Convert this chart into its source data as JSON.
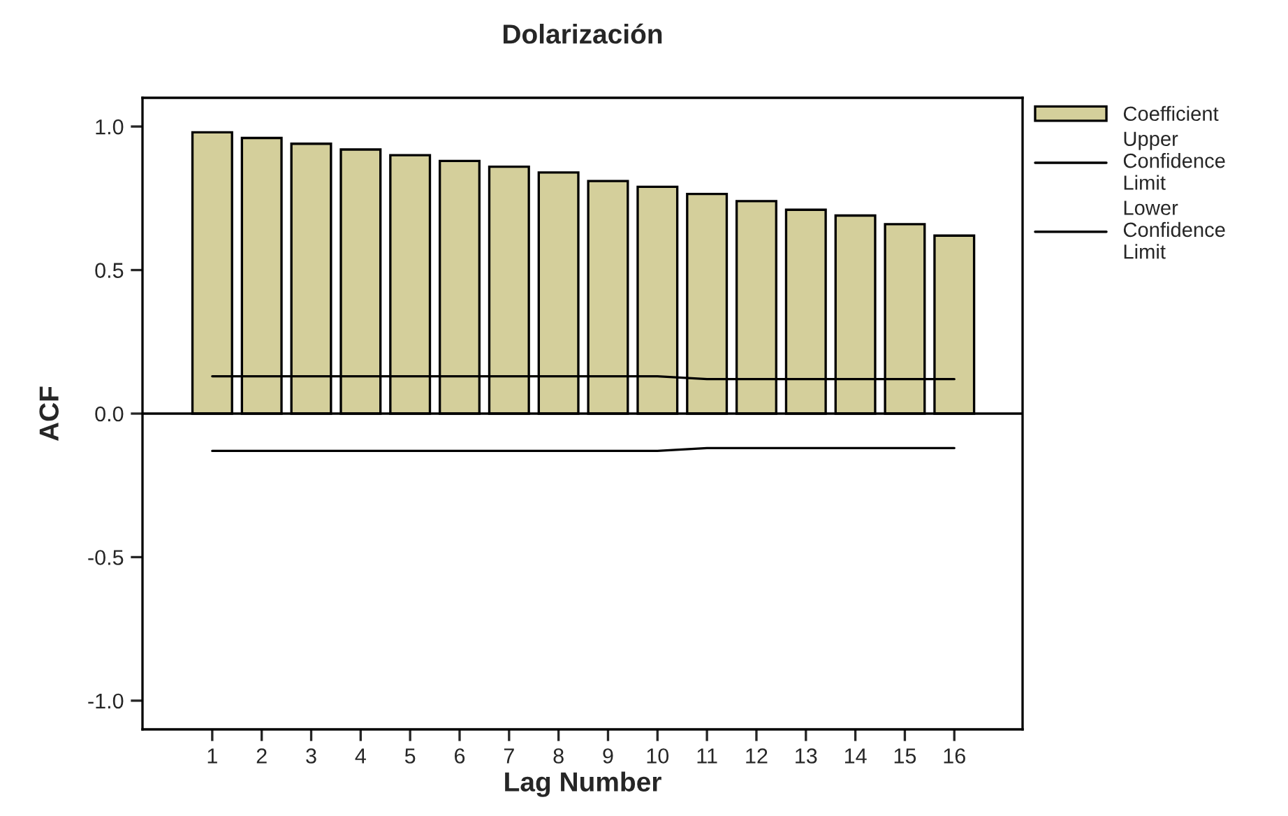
{
  "chart_data": {
    "type": "bar",
    "title": "Dolarización",
    "xlabel": "Lag Number",
    "ylabel": "ACF",
    "categories": [
      "1",
      "2",
      "3",
      "4",
      "5",
      "6",
      "7",
      "8",
      "9",
      "10",
      "11",
      "12",
      "13",
      "14",
      "15",
      "16"
    ],
    "series": [
      {
        "name": "Coefficient",
        "color": "#d4cf9b",
        "values": [
          0.98,
          0.96,
          0.94,
          0.92,
          0.9,
          0.88,
          0.86,
          0.84,
          0.81,
          0.79,
          0.765,
          0.74,
          0.71,
          0.69,
          0.66,
          0.62
        ]
      },
      {
        "name": "Upper Confidence Limit",
        "type": "line",
        "color": "#000000",
        "values": [
          0.13,
          0.13,
          0.13,
          0.13,
          0.13,
          0.13,
          0.13,
          0.13,
          0.13,
          0.13,
          0.12,
          0.12,
          0.12,
          0.12,
          0.12,
          0.12
        ]
      },
      {
        "name": "Lower Confidence Limit",
        "type": "line",
        "color": "#000000",
        "values": [
          -0.13,
          -0.13,
          -0.13,
          -0.13,
          -0.13,
          -0.13,
          -0.13,
          -0.13,
          -0.13,
          -0.13,
          -0.12,
          -0.12,
          -0.12,
          -0.12,
          -0.12,
          -0.12
        ]
      }
    ],
    "ylim": [
      -1.1,
      1.1
    ],
    "yticks": [
      {
        "value": -1.0,
        "label": "-1.0"
      },
      {
        "value": -0.5,
        "label": "-0.5"
      },
      {
        "value": 0.0,
        "label": "0.0"
      },
      {
        "value": 0.5,
        "label": "0.5"
      },
      {
        "value": 1.0,
        "label": "1.0"
      }
    ],
    "ref_lines": [
      {
        "axis": "y",
        "value": 0,
        "color": "#000000"
      }
    ],
    "legend": "right",
    "grid": false
  }
}
